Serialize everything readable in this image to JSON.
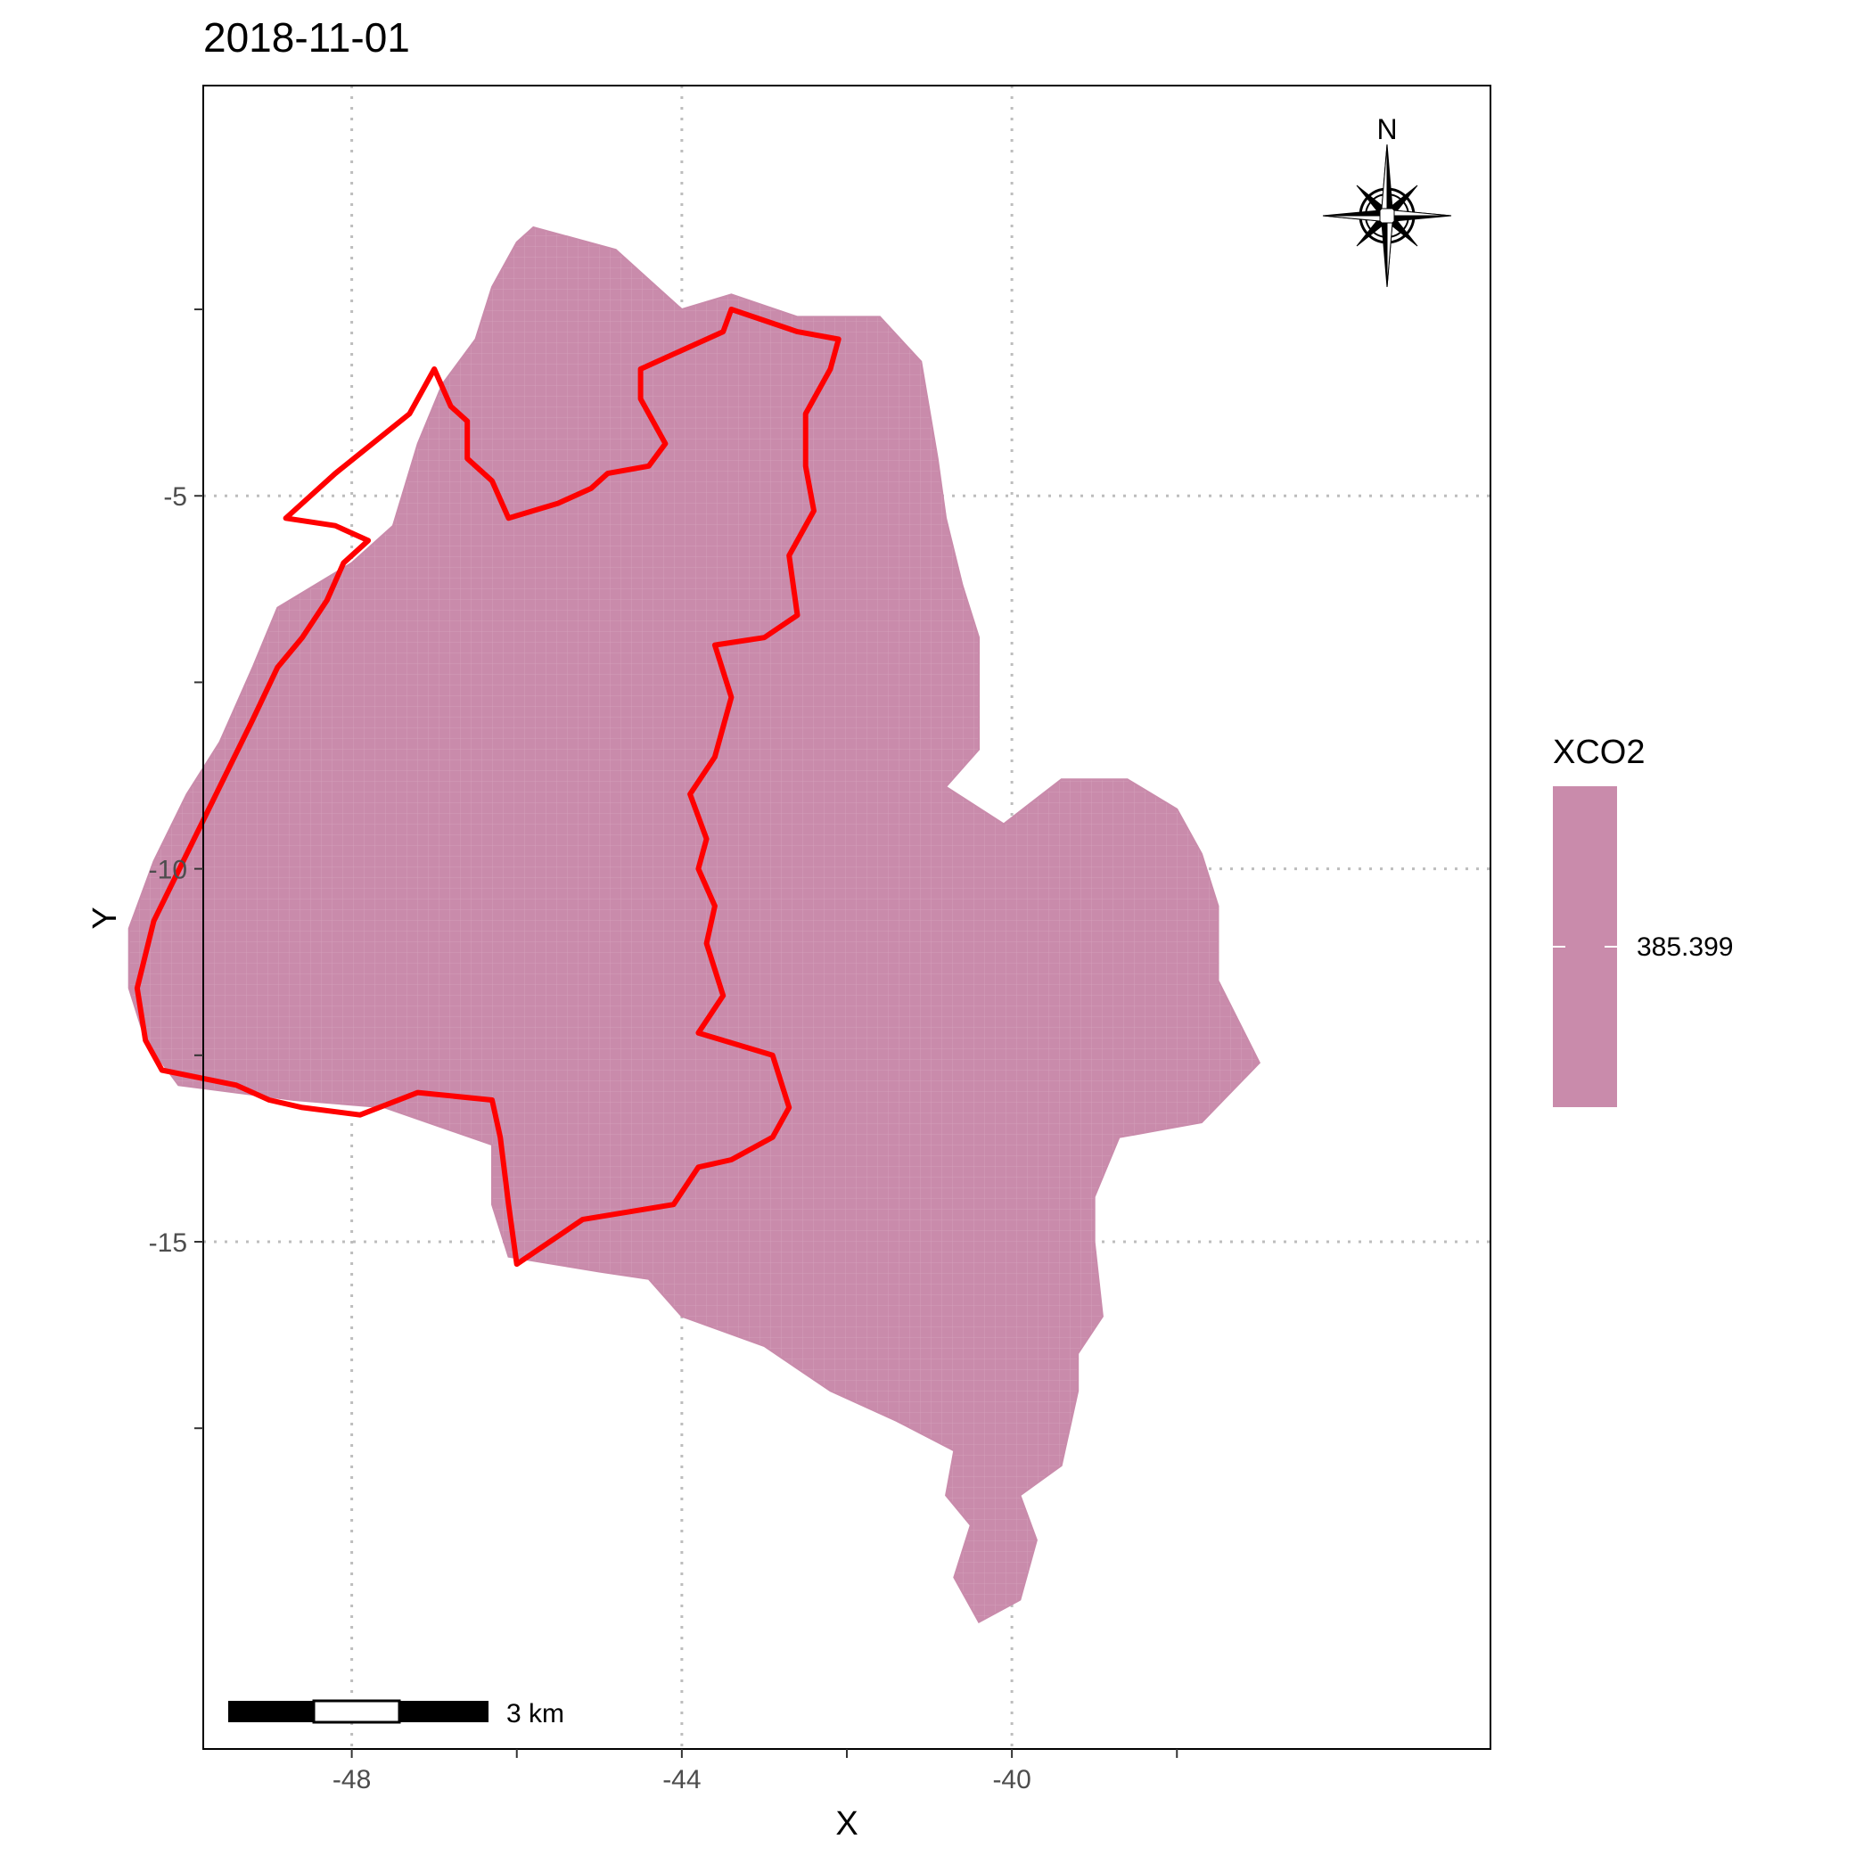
{
  "title": "2018-11-01",
  "chart_data": {
    "type": "heatmap",
    "title": "2018-11-01",
    "xlabel": "X",
    "ylabel": "Y",
    "xlim": [
      -49.8,
      -34.2
    ],
    "ylim": [
      -21.8,
      0.5
    ],
    "x_ticks": [
      {
        "value": -48,
        "label": "-48"
      },
      {
        "value": -44,
        "label": "-44"
      },
      {
        "value": -40,
        "label": "-40"
      }
    ],
    "y_ticks": [
      {
        "value": -5,
        "label": "-5"
      },
      {
        "value": -10,
        "label": "-10"
      },
      {
        "value": -15,
        "label": "-15"
      }
    ],
    "minor_x": [
      -50,
      -46,
      -42,
      -38
    ],
    "minor_y": [
      -2.5,
      -7.5,
      -12.5,
      -17.5
    ],
    "grid": true,
    "fill_color": "#C98BAB",
    "outline_color": "#FF0000",
    "legend": {
      "title": "XCO2",
      "label": "385.399",
      "value": 385.399,
      "placement": "right"
    },
    "fill_region": [
      [
        -46.0,
        -1.6
      ],
      [
        -45.8,
        -1.4
      ],
      [
        -44.8,
        -1.7
      ],
      [
        -44.4,
        -2.1
      ],
      [
        -44.0,
        -2.5
      ],
      [
        -43.4,
        -2.3
      ],
      [
        -42.6,
        -2.6
      ],
      [
        -41.6,
        -2.6
      ],
      [
        -41.1,
        -3.2
      ],
      [
        -40.9,
        -4.5
      ],
      [
        -40.8,
        -5.3
      ],
      [
        -40.6,
        -6.2
      ],
      [
        -40.4,
        -6.9
      ],
      [
        -40.4,
        -8.4
      ],
      [
        -40.8,
        -8.9
      ],
      [
        -40.1,
        -9.4
      ],
      [
        -39.4,
        -8.8
      ],
      [
        -38.6,
        -8.8
      ],
      [
        -38.0,
        -9.2
      ],
      [
        -37.7,
        -9.8
      ],
      [
        -37.5,
        -10.5
      ],
      [
        -37.5,
        -11.5
      ],
      [
        -37.0,
        -12.6
      ],
      [
        -37.7,
        -13.4
      ],
      [
        -38.7,
        -13.6
      ],
      [
        -39.0,
        -14.4
      ],
      [
        -39.0,
        -15.0
      ],
      [
        -38.9,
        -16.0
      ],
      [
        -39.2,
        -16.5
      ],
      [
        -39.2,
        -17.0
      ],
      [
        -39.4,
        -18.0
      ],
      [
        -39.9,
        -18.4
      ],
      [
        -39.7,
        -19.0
      ],
      [
        -39.9,
        -19.8
      ],
      [
        -40.4,
        -20.1
      ],
      [
        -40.7,
        -19.5
      ],
      [
        -40.5,
        -18.8
      ],
      [
        -40.8,
        -18.4
      ],
      [
        -40.7,
        -17.8
      ],
      [
        -41.4,
        -17.4
      ],
      [
        -42.2,
        -17.0
      ],
      [
        -43.0,
        -16.4
      ],
      [
        -44.0,
        -16.0
      ],
      [
        -44.4,
        -15.5
      ],
      [
        -45.0,
        -15.4
      ],
      [
        -46.1,
        -15.2
      ],
      [
        -46.3,
        -14.5
      ],
      [
        -46.3,
        -13.7
      ],
      [
        -47.6,
        -13.2
      ],
      [
        -48.7,
        -13.1
      ],
      [
        -50.1,
        -12.9
      ],
      [
        -50.5,
        -12.3
      ],
      [
        -50.7,
        -11.6
      ],
      [
        -50.7,
        -10.8
      ],
      [
        -50.4,
        -9.9
      ],
      [
        -50.0,
        -9.0
      ],
      [
        -49.6,
        -8.3
      ],
      [
        -49.2,
        -7.3
      ],
      [
        -48.9,
        -6.5
      ],
      [
        -48.0,
        -5.9
      ],
      [
        -47.5,
        -5.4
      ],
      [
        -47.2,
        -4.3
      ],
      [
        -46.9,
        -3.5
      ],
      [
        -46.5,
        -2.9
      ],
      [
        -46.3,
        -2.2
      ]
    ],
    "outline": [
      [
        -48.8,
        -5.3
      ],
      [
        -48.2,
        -4.7
      ],
      [
        -47.3,
        -3.9
      ],
      [
        -47.0,
        -3.3
      ],
      [
        -46.8,
        -3.8
      ],
      [
        -46.6,
        -4.0
      ],
      [
        -46.6,
        -4.5
      ],
      [
        -46.3,
        -4.8
      ],
      [
        -46.1,
        -5.3
      ],
      [
        -45.5,
        -5.1
      ],
      [
        -45.1,
        -4.9
      ],
      [
        -44.9,
        -4.7
      ],
      [
        -44.4,
        -4.6
      ],
      [
        -44.2,
        -4.3
      ],
      [
        -44.5,
        -3.7
      ],
      [
        -44.5,
        -3.3
      ],
      [
        -44.1,
        -3.1
      ],
      [
        -43.9,
        -3.0
      ],
      [
        -43.5,
        -2.8
      ],
      [
        -43.4,
        -2.5
      ],
      [
        -42.6,
        -2.8
      ],
      [
        -42.1,
        -2.9
      ],
      [
        -42.2,
        -3.3
      ],
      [
        -42.5,
        -3.9
      ],
      [
        -42.5,
        -4.6
      ],
      [
        -42.4,
        -5.2
      ],
      [
        -42.7,
        -5.8
      ],
      [
        -42.6,
        -6.6
      ],
      [
        -43.0,
        -6.9
      ],
      [
        -43.6,
        -7.0
      ],
      [
        -43.4,
        -7.7
      ],
      [
        -43.6,
        -8.5
      ],
      [
        -43.9,
        -9.0
      ],
      [
        -43.7,
        -9.6
      ],
      [
        -43.8,
        -10.0
      ],
      [
        -43.6,
        -10.5
      ],
      [
        -43.7,
        -11.0
      ],
      [
        -43.5,
        -11.7
      ],
      [
        -43.8,
        -12.2
      ],
      [
        -42.9,
        -12.5
      ],
      [
        -42.7,
        -13.2
      ],
      [
        -42.9,
        -13.6
      ],
      [
        -43.4,
        -13.9
      ],
      [
        -43.8,
        -14.0
      ],
      [
        -44.1,
        -14.5
      ],
      [
        -45.2,
        -14.7
      ],
      [
        -46.0,
        -15.3
      ],
      [
        -46.1,
        -14.5
      ],
      [
        -46.2,
        -13.6
      ],
      [
        -46.3,
        -13.1
      ],
      [
        -47.2,
        -13.0
      ],
      [
        -47.9,
        -13.3
      ],
      [
        -48.6,
        -13.2
      ],
      [
        -49.0,
        -13.1
      ],
      [
        -49.4,
        -12.9
      ],
      [
        -50.3,
        -12.7
      ],
      [
        -50.5,
        -12.3
      ],
      [
        -50.6,
        -11.6
      ],
      [
        -50.4,
        -10.7
      ],
      [
        -50.0,
        -9.8
      ],
      [
        -49.6,
        -8.9
      ],
      [
        -49.2,
        -8.0
      ],
      [
        -48.9,
        -7.3
      ],
      [
        -48.6,
        -6.9
      ],
      [
        -48.3,
        -6.4
      ],
      [
        -48.1,
        -5.9
      ],
      [
        -47.8,
        -5.6
      ],
      [
        -48.2,
        -5.4
      ]
    ],
    "north_arrow": {
      "label": "N"
    },
    "scale_bar": {
      "label": "3 km"
    }
  }
}
